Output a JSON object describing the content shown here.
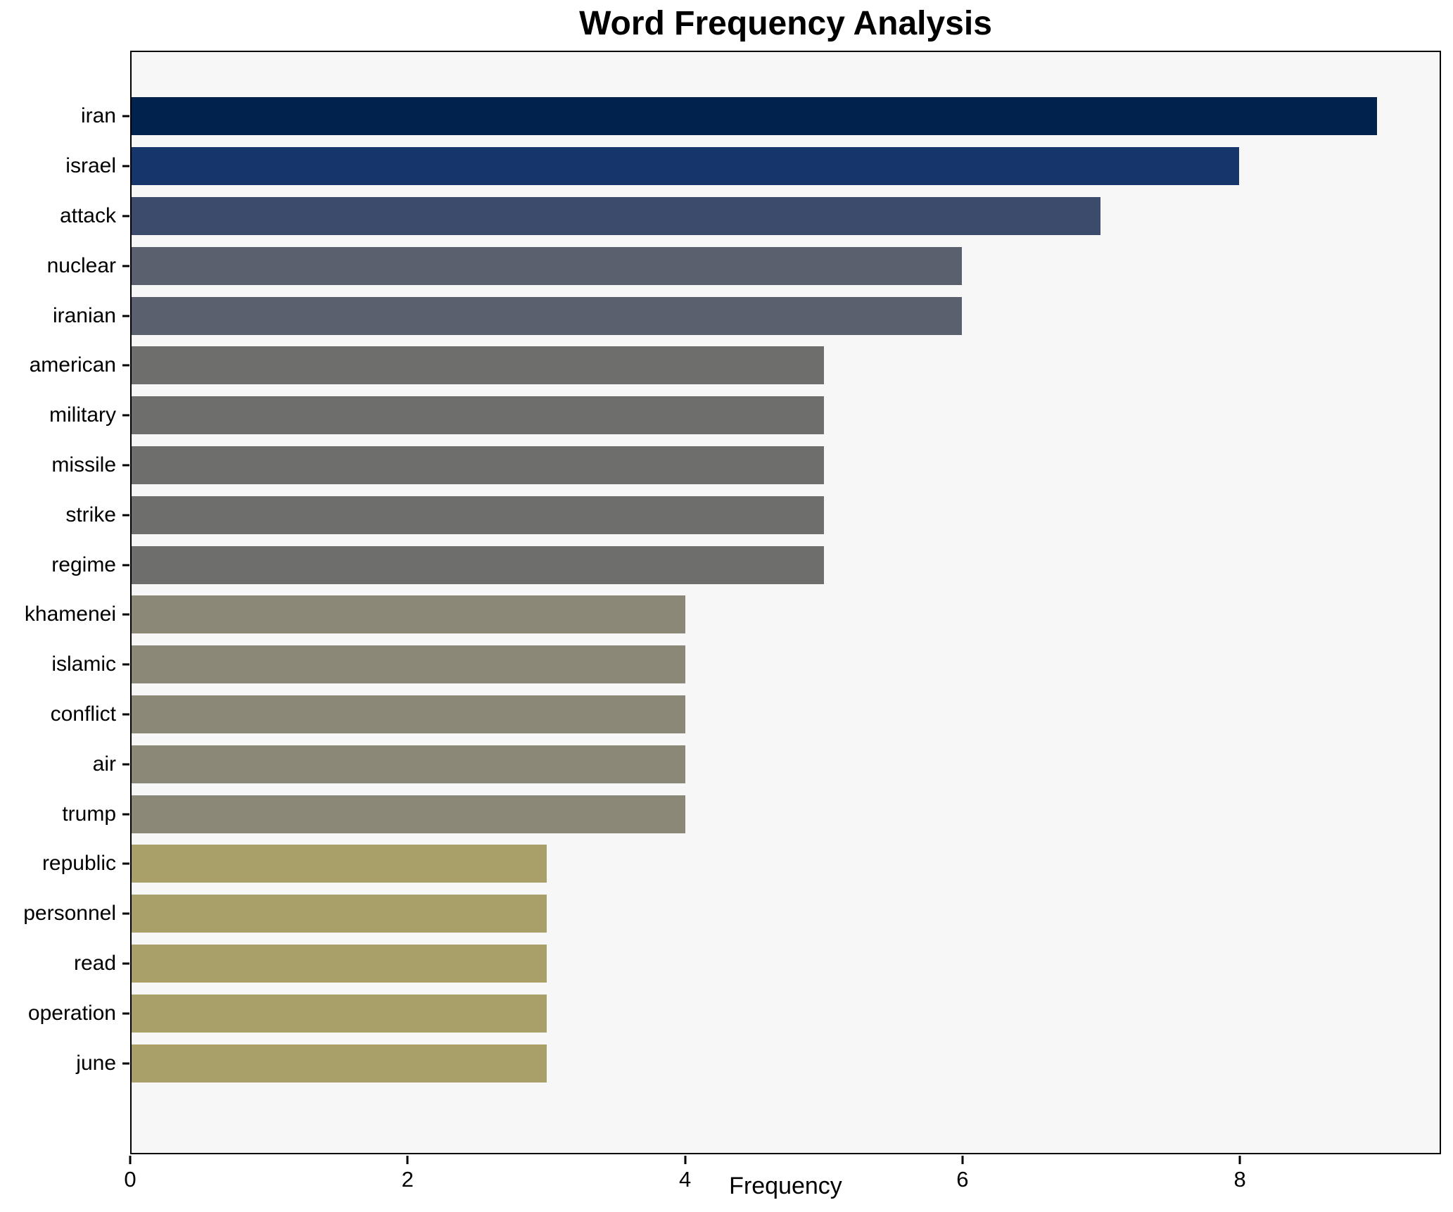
{
  "chart_data": {
    "type": "bar",
    "orientation": "horizontal",
    "title": "Word Frequency Analysis",
    "xlabel": "Frequency",
    "ylabel": "",
    "categories": [
      "iran",
      "israel",
      "attack",
      "nuclear",
      "iranian",
      "american",
      "military",
      "missile",
      "strike",
      "regime",
      "khamenei",
      "islamic",
      "conflict",
      "air",
      "trump",
      "republic",
      "personnel",
      "read",
      "operation",
      "june"
    ],
    "values": [
      9,
      8,
      7,
      6,
      6,
      5,
      5,
      5,
      5,
      5,
      4,
      4,
      4,
      4,
      4,
      3,
      3,
      3,
      3,
      3
    ],
    "bar_colors": [
      "#01224c",
      "#16356b",
      "#3c4a6b",
      "#5a606e",
      "#5a606e",
      "#6e6e6c",
      "#6e6e6c",
      "#6e6e6c",
      "#6e6e6c",
      "#6e6e6c",
      "#8b8878",
      "#8b8878",
      "#8b8878",
      "#8b8878",
      "#8b8878",
      "#a9a069",
      "#a9a069",
      "#a9a069",
      "#a9a069",
      "#a9a069"
    ],
    "xticks": [
      0,
      2,
      4,
      6,
      8
    ],
    "xlim": [
      0,
      9.45
    ],
    "grid": false,
    "legend": "none",
    "plot_background": "#f7f7f7",
    "figure_background": "#ffffff"
  }
}
